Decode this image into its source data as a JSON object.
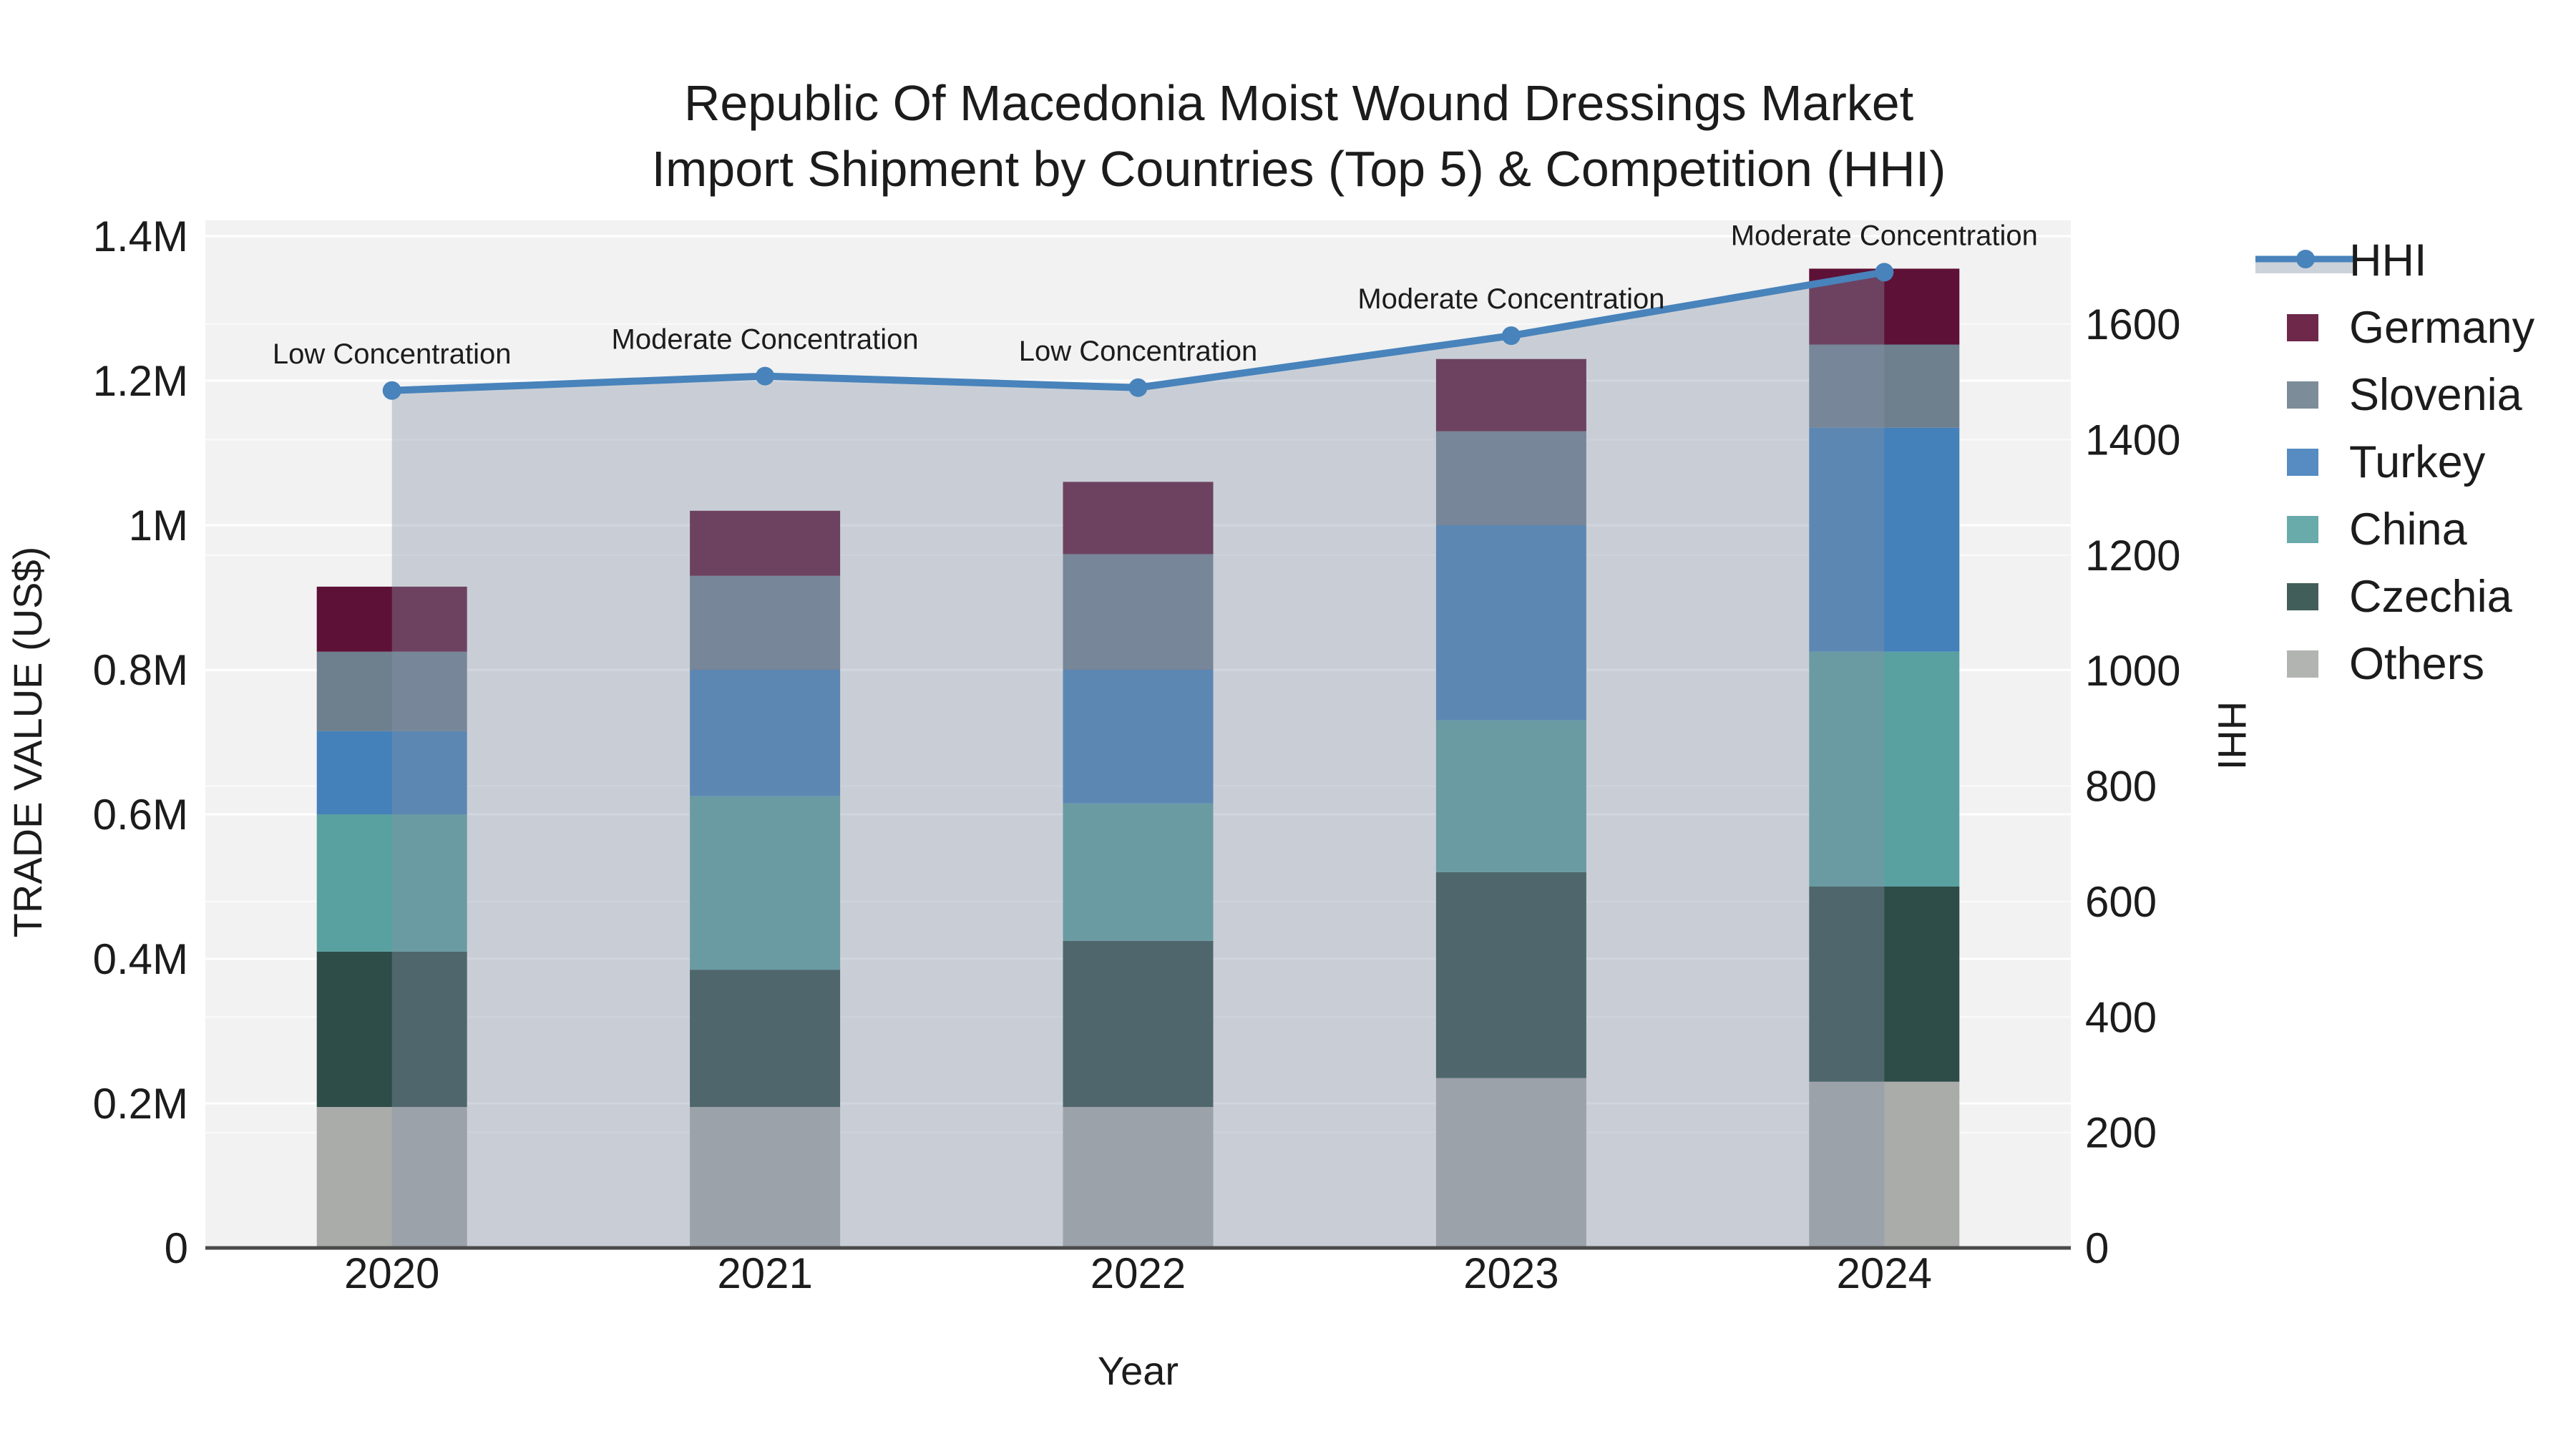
{
  "chart_data": {
    "type": "bar",
    "subtype": "stacked-bars-with-line-overlay",
    "title": "Republic Of Macedonia Moist Wound Dressings Market",
    "subtitle": "Import Shipment by Countries (Top 5) & Competition (HHI)",
    "xlabel": "Year",
    "ylabel_left": "TRADE VALUE (US$)",
    "ylabel_right": "HHI",
    "categories": [
      "2020",
      "2021",
      "2022",
      "2023",
      "2024"
    ],
    "series": [
      {
        "name": "Others",
        "color": "#aaacaa",
        "values": [
          195000,
          195000,
          195000,
          235000,
          230000
        ]
      },
      {
        "name": "Czechia",
        "color": "#2e4c48",
        "values": [
          215000,
          190000,
          230000,
          285000,
          270000
        ]
      },
      {
        "name": "China",
        "color": "#59a1a1",
        "values": [
          190000,
          240000,
          190000,
          210000,
          325000
        ]
      },
      {
        "name": "Turkey",
        "color": "#4480ba",
        "values": [
          115000,
          175000,
          185000,
          270000,
          310000
        ]
      },
      {
        "name": "Slovenia",
        "color": "#6e7f8e",
        "values": [
          110000,
          130000,
          160000,
          130000,
          115000
        ]
      },
      {
        "name": "Germany",
        "color": "#5e1136",
        "values": [
          90000,
          90000,
          100000,
          100000,
          105000
        ]
      }
    ],
    "line_series": {
      "name": "HHI",
      "color": "#4883bb",
      "area_fill": "rgba(133,146,168,0.38)",
      "legend_band_color": "#ccd2da",
      "values": [
        1485,
        1510,
        1490,
        1580,
        1690
      ],
      "annotations": [
        "Low Concentration",
        "Moderate Concentration",
        "Low Concentration",
        "Moderate Concentration",
        "Moderate Concentration"
      ]
    },
    "y_left_axis": {
      "range": [
        0,
        1400000
      ],
      "ticks": [
        {
          "v": 0,
          "label": "0"
        },
        {
          "v": 200000,
          "label": "0.2M"
        },
        {
          "v": 400000,
          "label": "0.4M"
        },
        {
          "v": 600000,
          "label": "0.6M"
        },
        {
          "v": 800000,
          "label": "0.8M"
        },
        {
          "v": 1000000,
          "label": "1M"
        },
        {
          "v": 1200000,
          "label": "1.2M"
        },
        {
          "v": 1400000,
          "label": "1.4M"
        }
      ]
    },
    "y_right_axis": {
      "range": [
        0,
        1777
      ],
      "ticks": [
        {
          "v": 0,
          "label": "0"
        },
        {
          "v": 200,
          "label": "200"
        },
        {
          "v": 400,
          "label": "400"
        },
        {
          "v": 600,
          "label": "600"
        },
        {
          "v": 800,
          "label": "800"
        },
        {
          "v": 1000,
          "label": "1000"
        },
        {
          "v": 1200,
          "label": "1200"
        },
        {
          "v": 1400,
          "label": "1400"
        },
        {
          "v": 1600,
          "label": "1600"
        }
      ]
    },
    "legend": {
      "position": "right",
      "items": [
        "HHI",
        "Germany",
        "Slovenia",
        "Turkey",
        "China",
        "Czechia",
        "Others"
      ]
    },
    "grid": true
  },
  "colors": {
    "plot_bg": "#f2f2f2",
    "grid": "#ffffff",
    "axis_line": "#4a4a4a",
    "text": "#1c1c1c"
  }
}
